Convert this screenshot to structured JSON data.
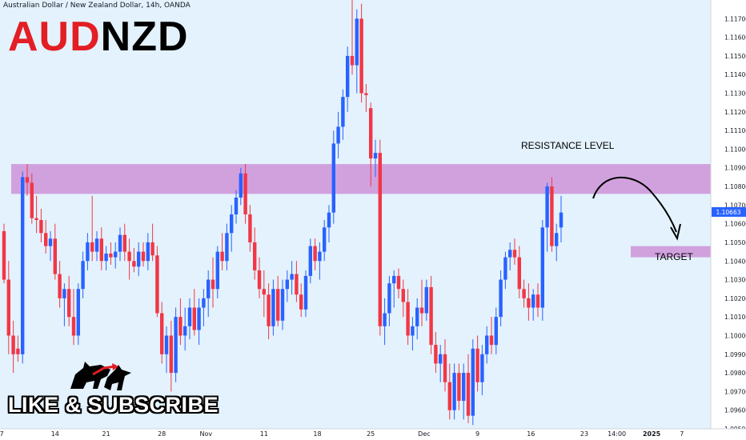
{
  "header": {
    "title": "Australian Dollar / New Zealand Dollar, 14h, OANDA"
  },
  "overlay": {
    "symbol_part1": "AUD",
    "symbol_part2": "NZD",
    "cta": "LIKE & SUBSCRIBE",
    "resistance_label": "RESISTANCE LEVEL",
    "target_label": "TARGET",
    "logo_icon": "bull-bear-icon"
  },
  "colors": {
    "background": "#e3f2fd",
    "bull": "#2962ff",
    "bear": "#f23645",
    "zone": "#ce93d8",
    "price_tag": "#2962ff"
  },
  "chart_data": {
    "type": "candlestick",
    "ylim": [
      1.095,
      1.118
    ],
    "y_ticks": [
      1.095,
      1.096,
      1.097,
      1.098,
      1.099,
      1.1,
      1.101,
      1.102,
      1.103,
      1.104,
      1.105,
      1.106,
      1.107,
      1.108,
      1.109,
      1.11,
      1.111,
      1.112,
      1.113,
      1.114,
      1.115,
      1.116,
      1.117
    ],
    "y_tick_labels": [
      "1.09500",
      "1.09600",
      "1.09700",
      "1.09800",
      "1.09900",
      "1.10000",
      "1.10100",
      "1.10200",
      "1.10300",
      "1.10400",
      "1.10500",
      "1.10600",
      "1.10700",
      "1.10800",
      "1.10900",
      "1.11000",
      "1.11100",
      "1.11200",
      "1.11300",
      "1.11400",
      "1.11500",
      "1.11600",
      "1.11700"
    ],
    "x_ticks": [
      {
        "label": "7",
        "index": -0.5
      },
      {
        "label": "14",
        "index": 11
      },
      {
        "label": "21",
        "index": 22
      },
      {
        "label": "28",
        "index": 34
      },
      {
        "label": "Nov",
        "index": 43.5
      },
      {
        "label": "11",
        "index": 56
      },
      {
        "label": "18",
        "index": 67.5
      },
      {
        "label": "25",
        "index": 79
      },
      {
        "label": "Dec",
        "index": 90.5
      },
      {
        "label": "9",
        "index": 102
      },
      {
        "label": "16",
        "index": 113.5
      },
      {
        "label": "23",
        "index": 125
      },
      {
        "label": "14:00",
        "index": 132
      },
      {
        "label": "2025",
        "index": 139.5
      },
      {
        "label": "7",
        "index": 146
      }
    ],
    "current_price": "1.10663",
    "resistance_zone": [
      1.1076,
      1.1092
    ],
    "target_zone": [
      1.1042,
      1.1048
    ],
    "candles": [
      {
        "o": 1.1056,
        "h": 1.106,
        "l": 1.1028,
        "c": 1.103
      },
      {
        "o": 1.103,
        "h": 1.104,
        "l": 1.099,
        "c": 1.1
      },
      {
        "o": 1.1,
        "h": 1.1008,
        "l": 1.098,
        "c": 1.099
      },
      {
        "o": 1.0993,
        "h": 1.1,
        "l": 1.0986,
        "c": 1.099
      },
      {
        "o": 1.099,
        "h": 1.1088,
        "l": 1.0985,
        "c": 1.1085
      },
      {
        "o": 1.1085,
        "h": 1.1092,
        "l": 1.1075,
        "c": 1.1082
      },
      {
        "o": 1.1082,
        "h": 1.1087,
        "l": 1.106,
        "c": 1.1063
      },
      {
        "o": 1.1063,
        "h": 1.1075,
        "l": 1.1055,
        "c": 1.1062
      },
      {
        "o": 1.1062,
        "h": 1.1068,
        "l": 1.105,
        "c": 1.1055
      },
      {
        "o": 1.1055,
        "h": 1.1062,
        "l": 1.1044,
        "c": 1.1048
      },
      {
        "o": 1.1048,
        "h": 1.1056,
        "l": 1.104,
        "c": 1.1052
      },
      {
        "o": 1.1052,
        "h": 1.106,
        "l": 1.103,
        "c": 1.1033
      },
      {
        "o": 1.1033,
        "h": 1.104,
        "l": 1.1015,
        "c": 1.102
      },
      {
        "o": 1.102,
        "h": 1.1028,
        "l": 1.1005,
        "c": 1.1025
      },
      {
        "o": 1.1025,
        "h": 1.1032,
        "l": 1.1005,
        "c": 1.101
      },
      {
        "o": 1.101,
        "h": 1.1025,
        "l": 1.0995,
        "c": 1.1
      },
      {
        "o": 1.1,
        "h": 1.1028,
        "l": 1.0995,
        "c": 1.1025
      },
      {
        "o": 1.1025,
        "h": 1.1045,
        "l": 1.102,
        "c": 1.104
      },
      {
        "o": 1.104,
        "h": 1.1055,
        "l": 1.1035,
        "c": 1.105
      },
      {
        "o": 1.105,
        "h": 1.1075,
        "l": 1.104,
        "c": 1.1045
      },
      {
        "o": 1.1045,
        "h": 1.1056,
        "l": 1.104,
        "c": 1.1052
      },
      {
        "o": 1.1052,
        "h": 1.1058,
        "l": 1.1035,
        "c": 1.104
      },
      {
        "o": 1.104,
        "h": 1.1048,
        "l": 1.1035,
        "c": 1.1044
      },
      {
        "o": 1.1044,
        "h": 1.105,
        "l": 1.1038,
        "c": 1.1042
      },
      {
        "o": 1.1042,
        "h": 1.105,
        "l": 1.1036,
        "c": 1.1045
      },
      {
        "o": 1.1045,
        "h": 1.1058,
        "l": 1.104,
        "c": 1.1054
      },
      {
        "o": 1.1054,
        "h": 1.106,
        "l": 1.104,
        "c": 1.1045
      },
      {
        "o": 1.1045,
        "h": 1.1052,
        "l": 1.103,
        "c": 1.104
      },
      {
        "o": 1.104,
        "h": 1.1047,
        "l": 1.1034,
        "c": 1.1037
      },
      {
        "o": 1.1037,
        "h": 1.105,
        "l": 1.1032,
        "c": 1.1045
      },
      {
        "o": 1.1045,
        "h": 1.105,
        "l": 1.1037,
        "c": 1.104
      },
      {
        "o": 1.104,
        "h": 1.1055,
        "l": 1.1035,
        "c": 1.105
      },
      {
        "o": 1.105,
        "h": 1.106,
        "l": 1.104,
        "c": 1.1043
      },
      {
        "o": 1.1043,
        "h": 1.1048,
        "l": 1.101,
        "c": 1.1012
      },
      {
        "o": 1.1012,
        "h": 1.1018,
        "l": 1.0985,
        "c": 1.099
      },
      {
        "o": 1.099,
        "h": 1.1005,
        "l": 1.098,
        "c": 1.1
      },
      {
        "o": 1.1,
        "h": 1.1008,
        "l": 1.097,
        "c": 1.098
      },
      {
        "o": 1.098,
        "h": 1.1015,
        "l": 1.0975,
        "c": 1.101
      },
      {
        "o": 1.101,
        "h": 1.102,
        "l": 1.0995,
        "c": 1.1
      },
      {
        "o": 1.1,
        "h": 1.1015,
        "l": 1.0992,
        "c": 1.1005
      },
      {
        "o": 1.1005,
        "h": 1.102,
        "l": 1.0998,
        "c": 1.1015
      },
      {
        "o": 1.1015,
        "h": 1.1025,
        "l": 1.1,
        "c": 1.1003
      },
      {
        "o": 1.1003,
        "h": 1.102,
        "l": 1.0995,
        "c": 1.1015
      },
      {
        "o": 1.1015,
        "h": 1.1025,
        "l": 1.1005,
        "c": 1.102
      },
      {
        "o": 1.102,
        "h": 1.1035,
        "l": 1.101,
        "c": 1.103
      },
      {
        "o": 1.103,
        "h": 1.1042,
        "l": 1.1015,
        "c": 1.1025
      },
      {
        "o": 1.1025,
        "h": 1.1048,
        "l": 1.102,
        "c": 1.1045
      },
      {
        "o": 1.1045,
        "h": 1.1055,
        "l": 1.1035,
        "c": 1.104
      },
      {
        "o": 1.104,
        "h": 1.106,
        "l": 1.1035,
        "c": 1.1055
      },
      {
        "o": 1.1055,
        "h": 1.107,
        "l": 1.1045,
        "c": 1.1065
      },
      {
        "o": 1.1065,
        "h": 1.1078,
        "l": 1.106,
        "c": 1.1074
      },
      {
        "o": 1.1074,
        "h": 1.109,
        "l": 1.107,
        "c": 1.1087
      },
      {
        "o": 1.1087,
        "h": 1.1092,
        "l": 1.106,
        "c": 1.1065
      },
      {
        "o": 1.1065,
        "h": 1.107,
        "l": 1.1045,
        "c": 1.105
      },
      {
        "o": 1.105,
        "h": 1.1058,
        "l": 1.103,
        "c": 1.1035
      },
      {
        "o": 1.1035,
        "h": 1.1042,
        "l": 1.102,
        "c": 1.1025
      },
      {
        "o": 1.1025,
        "h": 1.1035,
        "l": 1.101,
        "c": 1.1022
      },
      {
        "o": 1.1022,
        "h": 1.1028,
        "l": 1.0998,
        "c": 1.1005
      },
      {
        "o": 1.1005,
        "h": 1.103,
        "l": 1.1,
        "c": 1.1025
      },
      {
        "o": 1.1025,
        "h": 1.1032,
        "l": 1.1005,
        "c": 1.1008
      },
      {
        "o": 1.1008,
        "h": 1.103,
        "l": 1.1003,
        "c": 1.1025
      },
      {
        "o": 1.1025,
        "h": 1.1035,
        "l": 1.1018,
        "c": 1.103
      },
      {
        "o": 1.103,
        "h": 1.104,
        "l": 1.1022,
        "c": 1.1033
      },
      {
        "o": 1.1033,
        "h": 1.104,
        "l": 1.1018,
        "c": 1.1022
      },
      {
        "o": 1.1022,
        "h": 1.1028,
        "l": 1.101,
        "c": 1.1014
      },
      {
        "o": 1.1014,
        "h": 1.1035,
        "l": 1.101,
        "c": 1.1032
      },
      {
        "o": 1.1032,
        "h": 1.1052,
        "l": 1.1028,
        "c": 1.1048
      },
      {
        "o": 1.1048,
        "h": 1.1052,
        "l": 1.1035,
        "c": 1.104
      },
      {
        "o": 1.104,
        "h": 1.105,
        "l": 1.103,
        "c": 1.1045
      },
      {
        "o": 1.1045,
        "h": 1.1062,
        "l": 1.104,
        "c": 1.1058
      },
      {
        "o": 1.1058,
        "h": 1.107,
        "l": 1.105,
        "c": 1.1066
      },
      {
        "o": 1.1066,
        "h": 1.111,
        "l": 1.106,
        "c": 1.1103
      },
      {
        "o": 1.1103,
        "h": 1.112,
        "l": 1.1095,
        "c": 1.1112
      },
      {
        "o": 1.1112,
        "h": 1.1132,
        "l": 1.1105,
        "c": 1.1128
      },
      {
        "o": 1.1128,
        "h": 1.1155,
        "l": 1.112,
        "c": 1.115
      },
      {
        "o": 1.115,
        "h": 1.118,
        "l": 1.114,
        "c": 1.1145
      },
      {
        "o": 1.1145,
        "h": 1.1175,
        "l": 1.113,
        "c": 1.117
      },
      {
        "o": 1.117,
        "h": 1.1178,
        "l": 1.1125,
        "c": 1.113
      },
      {
        "o": 1.113,
        "h": 1.1135,
        "l": 1.112,
        "c": 1.1129
      },
      {
        "o": 1.1122,
        "h": 1.1125,
        "l": 1.108,
        "c": 1.1095
      },
      {
        "o": 1.1095,
        "h": 1.1105,
        "l": 1.1085,
        "c": 1.1098
      },
      {
        "o": 1.1098,
        "h": 1.1105,
        "l": 1.1,
        "c": 1.1005
      },
      {
        "o": 1.1005,
        "h": 1.102,
        "l": 1.0995,
        "c": 1.1012
      },
      {
        "o": 1.1012,
        "h": 1.1032,
        "l": 1.1005,
        "c": 1.1028
      },
      {
        "o": 1.1028,
        "h": 1.1035,
        "l": 1.1015,
        "c": 1.1032
      },
      {
        "o": 1.1032,
        "h": 1.1036,
        "l": 1.102,
        "c": 1.1025
      },
      {
        "o": 1.1025,
        "h": 1.103,
        "l": 1.101,
        "c": 1.1018
      },
      {
        "o": 1.1018,
        "h": 1.1025,
        "l": 1.0995,
        "c": 1.1
      },
      {
        "o": 1.1,
        "h": 1.101,
        "l": 1.0992,
        "c": 1.1005
      },
      {
        "o": 1.1005,
        "h": 1.102,
        "l": 1.0998,
        "c": 1.1015
      },
      {
        "o": 1.1015,
        "h": 1.103,
        "l": 1.1005,
        "c": 1.1012
      },
      {
        "o": 1.1012,
        "h": 1.103,
        "l": 1.1008,
        "c": 1.1026
      },
      {
        "o": 1.1026,
        "h": 1.1032,
        "l": 1.099,
        "c": 1.0995
      },
      {
        "o": 1.0995,
        "h": 1.1002,
        "l": 1.098,
        "c": 1.0985
      },
      {
        "o": 1.0985,
        "h": 1.0995,
        "l": 1.0975,
        "c": 1.099
      },
      {
        "o": 1.099,
        "h": 1.0998,
        "l": 1.097,
        "c": 1.0975
      },
      {
        "o": 1.0975,
        "h": 1.0985,
        "l": 1.0955,
        "c": 1.096
      },
      {
        "o": 1.096,
        "h": 1.0985,
        "l": 1.0955,
        "c": 1.098
      },
      {
        "o": 1.098,
        "h": 1.0985,
        "l": 1.096,
        "c": 1.0965
      },
      {
        "o": 1.0965,
        "h": 1.0985,
        "l": 1.0955,
        "c": 1.098
      },
      {
        "o": 1.098,
        "h": 1.099,
        "l": 1.0953,
        "c": 1.0957
      },
      {
        "o": 1.0957,
        "h": 1.0998,
        "l": 1.0952,
        "c": 1.0993
      },
      {
        "o": 1.0993,
        "h": 1.1,
        "l": 1.097,
        "c": 1.0975
      },
      {
        "o": 1.0975,
        "h": 1.0995,
        "l": 1.0968,
        "c": 1.099
      },
      {
        "o": 1.099,
        "h": 1.1005,
        "l": 1.0985,
        "c": 1.1
      },
      {
        "o": 1.1,
        "h": 1.101,
        "l": 1.099,
        "c": 1.0995
      },
      {
        "o": 1.0995,
        "h": 1.1015,
        "l": 1.099,
        "c": 1.101
      },
      {
        "o": 1.101,
        "h": 1.1035,
        "l": 1.1005,
        "c": 1.103
      },
      {
        "o": 1.103,
        "h": 1.1045,
        "l": 1.1025,
        "c": 1.1042
      },
      {
        "o": 1.1042,
        "h": 1.105,
        "l": 1.1035,
        "c": 1.1046
      },
      {
        "o": 1.1046,
        "h": 1.1052,
        "l": 1.1038,
        "c": 1.1042
      },
      {
        "o": 1.1042,
        "h": 1.1048,
        "l": 1.102,
        "c": 1.1025
      },
      {
        "o": 1.1025,
        "h": 1.103,
        "l": 1.1015,
        "c": 1.102
      },
      {
        "o": 1.102,
        "h": 1.1028,
        "l": 1.1008,
        "c": 1.1015
      },
      {
        "o": 1.1015,
        "h": 1.1025,
        "l": 1.1008,
        "c": 1.1022
      },
      {
        "o": 1.1022,
        "h": 1.1028,
        "l": 1.101,
        "c": 1.1015
      },
      {
        "o": 1.1015,
        "h": 1.1062,
        "l": 1.1008,
        "c": 1.1058
      },
      {
        "o": 1.1058,
        "h": 1.1082,
        "l": 1.1045,
        "c": 1.108
      },
      {
        "o": 1.108,
        "h": 1.1085,
        "l": 1.1045,
        "c": 1.1048
      },
      {
        "o": 1.1048,
        "h": 1.106,
        "l": 1.104,
        "c": 1.1055
      },
      {
        "o": 1.1058,
        "h": 1.1075,
        "l": 1.105,
        "c": 1.1066
      }
    ]
  }
}
